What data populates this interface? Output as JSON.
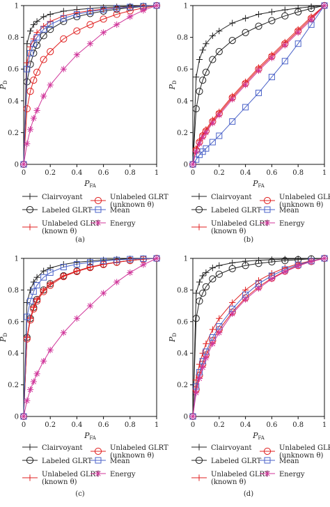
{
  "figure": {
    "panel_labels": [
      "(a)",
      "(b)",
      "(c)",
      "(d)"
    ],
    "legend": [
      {
        "lines": [
          "Clairvoyant"
        ],
        "marker": "plus",
        "color": "#222222"
      },
      {
        "lines": [
          "Unlabeled GLRT",
          "(unknown θ)"
        ],
        "marker": "circle",
        "color": "#e02020"
      },
      {
        "lines": [
          "Labeled GLRT"
        ],
        "marker": "circle",
        "color": "#222222"
      },
      {
        "lines": [
          "Mean"
        ],
        "marker": "square",
        "color": "#4a62c8"
      },
      {
        "lines": [
          "Unlabeled GLRT",
          "(known θ)"
        ],
        "marker": "plus",
        "color": "#e02020"
      },
      {
        "lines": [
          "Energy"
        ],
        "marker": "asterisk",
        "color": "#d0369a"
      }
    ]
  },
  "chart_data": [
    {
      "type": "line",
      "panel": "(a)",
      "xlabel": "P_FA",
      "ylabel": "P_D",
      "xlim": [
        0,
        1
      ],
      "ylim": [
        0,
        1
      ],
      "xticks": [
        "0",
        "0.2",
        "0.4",
        "0.6",
        "0.8",
        "1"
      ],
      "yticks": [
        "0",
        "0.2",
        "0.4",
        "0.6",
        "0.8",
        "1"
      ],
      "x": [
        0,
        0.025,
        0.05,
        0.075,
        0.1,
        0.15,
        0.2,
        0.3,
        0.4,
        0.5,
        0.6,
        0.7,
        0.8,
        0.9,
        1
      ],
      "series": [
        {
          "name": "Clairvoyant",
          "marker": "plus",
          "color": "#222222",
          "values": [
            0,
            0.76,
            0.84,
            0.88,
            0.9,
            0.93,
            0.945,
            0.965,
            0.975,
            0.982,
            0.988,
            0.992,
            0.995,
            0.998,
            1
          ]
        },
        {
          "name": "Labeled GLRT",
          "marker": "circle",
          "color": "#222222",
          "values": [
            0,
            0.52,
            0.63,
            0.7,
            0.75,
            0.81,
            0.85,
            0.9,
            0.93,
            0.95,
            0.965,
            0.977,
            0.987,
            0.994,
            1
          ]
        },
        {
          "name": "Unlabeled GLRT (known θ)",
          "marker": "plus",
          "color": "#e02020",
          "values": [
            0,
            0.64,
            0.74,
            0.79,
            0.83,
            0.87,
            0.9,
            0.935,
            0.955,
            0.968,
            0.978,
            0.986,
            0.992,
            0.997,
            1
          ]
        },
        {
          "name": "Unlabeled GLRT (unknown θ)",
          "marker": "circle",
          "color": "#e02020",
          "values": [
            0,
            0.35,
            0.46,
            0.53,
            0.58,
            0.66,
            0.71,
            0.79,
            0.84,
            0.88,
            0.915,
            0.945,
            0.967,
            0.985,
            1
          ]
        },
        {
          "name": "Mean",
          "marker": "square",
          "color": "#4a62c8",
          "values": [
            0,
            0.6,
            0.7,
            0.76,
            0.8,
            0.85,
            0.88,
            0.92,
            0.945,
            0.962,
            0.974,
            0.984,
            0.991,
            0.996,
            1
          ]
        },
        {
          "name": "Energy",
          "marker": "asterisk",
          "color": "#d0369a",
          "values": [
            0,
            0.13,
            0.22,
            0.29,
            0.34,
            0.43,
            0.5,
            0.6,
            0.69,
            0.76,
            0.83,
            0.88,
            0.93,
            0.97,
            1
          ]
        }
      ]
    },
    {
      "type": "line",
      "panel": "(b)",
      "xlabel": "P_FA",
      "ylabel": "P_D",
      "xlim": [
        0,
        1
      ],
      "ylim": [
        0,
        1
      ],
      "xticks": [
        "0",
        "0.2",
        "0.4",
        "0.6",
        "0.8",
        "1"
      ],
      "yticks": [
        "0",
        "0.2",
        "0.4",
        "0.6",
        "0.8",
        "1"
      ],
      "x": [
        0,
        0.025,
        0.05,
        0.075,
        0.1,
        0.15,
        0.2,
        0.3,
        0.4,
        0.5,
        0.6,
        0.7,
        0.8,
        0.9,
        1
      ],
      "series": [
        {
          "name": "Clairvoyant",
          "marker": "plus",
          "color": "#222222",
          "values": [
            0,
            0.55,
            0.66,
            0.72,
            0.76,
            0.81,
            0.84,
            0.89,
            0.92,
            0.945,
            0.96,
            0.973,
            0.984,
            0.993,
            1
          ]
        },
        {
          "name": "Labeled GLRT",
          "marker": "circle",
          "color": "#222222",
          "values": [
            0,
            0.35,
            0.46,
            0.53,
            0.58,
            0.66,
            0.71,
            0.78,
            0.83,
            0.87,
            0.905,
            0.935,
            0.96,
            0.982,
            1
          ]
        },
        {
          "name": "Unlabeled GLRT (known θ)",
          "marker": "plus",
          "color": "#e02020",
          "values": [
            0,
            0.1,
            0.15,
            0.19,
            0.22,
            0.28,
            0.33,
            0.43,
            0.52,
            0.61,
            0.69,
            0.77,
            0.85,
            0.93,
            1
          ]
        },
        {
          "name": "Unlabeled GLRT (unknown θ)",
          "marker": "circle",
          "color": "#e02020",
          "values": [
            0,
            0.09,
            0.14,
            0.18,
            0.21,
            0.27,
            0.32,
            0.42,
            0.51,
            0.6,
            0.68,
            0.76,
            0.84,
            0.92,
            1
          ]
        },
        {
          "name": "Mean",
          "marker": "square",
          "color": "#4a62c8",
          "values": [
            0,
            0.03,
            0.06,
            0.08,
            0.1,
            0.14,
            0.18,
            0.27,
            0.36,
            0.45,
            0.55,
            0.65,
            0.76,
            0.88,
            1
          ]
        },
        {
          "name": "Energy",
          "marker": "asterisk",
          "color": "#d0369a",
          "values": [
            0,
            0.08,
            0.13,
            0.17,
            0.2,
            0.26,
            0.31,
            0.41,
            0.5,
            0.59,
            0.67,
            0.75,
            0.83,
            0.91,
            1
          ]
        }
      ]
    },
    {
      "type": "line",
      "panel": "(c)",
      "xlabel": "P_FA",
      "ylabel": "P_D",
      "xlim": [
        0,
        1
      ],
      "ylim": [
        0,
        1
      ],
      "xticks": [
        "0",
        "0.2",
        "0.4",
        "0.6",
        "0.8",
        "1"
      ],
      "yticks": [
        "0",
        "0.2",
        "0.4",
        "0.6",
        "0.8",
        "1"
      ],
      "x": [
        0,
        0.025,
        0.05,
        0.075,
        0.1,
        0.15,
        0.2,
        0.3,
        0.4,
        0.5,
        0.6,
        0.7,
        0.8,
        0.9,
        1
      ],
      "series": [
        {
          "name": "Clairvoyant",
          "marker": "plus",
          "color": "#222222",
          "values": [
            0,
            0.72,
            0.8,
            0.85,
            0.88,
            0.92,
            0.94,
            0.962,
            0.975,
            0.983,
            0.99,
            0.994,
            0.997,
            0.999,
            1
          ]
        },
        {
          "name": "Labeled GLRT",
          "marker": "circle",
          "color": "#222222",
          "values": [
            0,
            0.5,
            0.62,
            0.69,
            0.74,
            0.8,
            0.84,
            0.89,
            0.92,
            0.945,
            0.963,
            0.976,
            0.987,
            0.995,
            1
          ]
        },
        {
          "name": "Unlabeled GLRT (known θ)",
          "marker": "plus",
          "color": "#e02020",
          "values": [
            0,
            0.5,
            0.62,
            0.69,
            0.74,
            0.8,
            0.84,
            0.89,
            0.92,
            0.945,
            0.963,
            0.976,
            0.987,
            0.995,
            1
          ]
        },
        {
          "name": "Unlabeled GLRT (unknown θ)",
          "marker": "circle",
          "color": "#e02020",
          "values": [
            0,
            0.49,
            0.61,
            0.68,
            0.73,
            0.79,
            0.83,
            0.885,
            0.917,
            0.942,
            0.961,
            0.975,
            0.986,
            0.995,
            1
          ]
        },
        {
          "name": "Mean",
          "marker": "square",
          "color": "#4a62c8",
          "values": [
            0,
            0.63,
            0.73,
            0.79,
            0.83,
            0.88,
            0.91,
            0.945,
            0.963,
            0.975,
            0.984,
            0.99,
            0.995,
            0.998,
            1
          ]
        },
        {
          "name": "Energy",
          "marker": "asterisk",
          "color": "#d0369a",
          "values": [
            0,
            0.1,
            0.17,
            0.22,
            0.27,
            0.35,
            0.42,
            0.53,
            0.62,
            0.7,
            0.78,
            0.85,
            0.91,
            0.96,
            1
          ]
        }
      ]
    },
    {
      "type": "line",
      "panel": "(d)",
      "xlabel": "P_FA",
      "ylabel": "P_D",
      "xlim": [
        0,
        1
      ],
      "ylim": [
        0,
        1
      ],
      "xticks": [
        "0",
        "0.2",
        "0.4",
        "0.6",
        "0.8",
        "1"
      ],
      "yticks": [
        "0",
        "0.2",
        "0.4",
        "0.6",
        "0.8",
        "1"
      ],
      "x": [
        0,
        0.025,
        0.05,
        0.075,
        0.1,
        0.15,
        0.2,
        0.3,
        0.4,
        0.5,
        0.6,
        0.7,
        0.8,
        0.9,
        1
      ],
      "series": [
        {
          "name": "Clairvoyant",
          "marker": "plus",
          "color": "#222222",
          "values": [
            0,
            0.78,
            0.85,
            0.89,
            0.91,
            0.94,
            0.955,
            0.972,
            0.982,
            0.988,
            0.992,
            0.995,
            0.997,
            0.999,
            1
          ]
        },
        {
          "name": "Labeled GLRT",
          "marker": "circle",
          "color": "#222222",
          "values": [
            0,
            0.62,
            0.73,
            0.78,
            0.82,
            0.87,
            0.9,
            0.935,
            0.955,
            0.968,
            0.978,
            0.986,
            0.992,
            0.997,
            1
          ]
        },
        {
          "name": "Unlabeled GLRT (known θ)",
          "marker": "plus",
          "color": "#e02020",
          "values": [
            0,
            0.23,
            0.33,
            0.4,
            0.46,
            0.55,
            0.62,
            0.72,
            0.8,
            0.86,
            0.905,
            0.94,
            0.965,
            0.985,
            1
          ]
        },
        {
          "name": "Unlabeled GLRT (unknown θ)",
          "marker": "circle",
          "color": "#e02020",
          "values": [
            0,
            0.17,
            0.26,
            0.33,
            0.39,
            0.48,
            0.55,
            0.66,
            0.75,
            0.82,
            0.875,
            0.92,
            0.955,
            0.98,
            1
          ]
        },
        {
          "name": "Mean",
          "marker": "square",
          "color": "#4a62c8",
          "values": [
            0,
            0.19,
            0.28,
            0.35,
            0.41,
            0.5,
            0.57,
            0.68,
            0.77,
            0.84,
            0.89,
            0.93,
            0.96,
            0.983,
            1
          ]
        },
        {
          "name": "Energy",
          "marker": "asterisk",
          "color": "#d0369a",
          "values": [
            0,
            0.15,
            0.24,
            0.31,
            0.37,
            0.46,
            0.53,
            0.65,
            0.74,
            0.81,
            0.87,
            0.915,
            0.952,
            0.98,
            1
          ]
        }
      ]
    }
  ]
}
